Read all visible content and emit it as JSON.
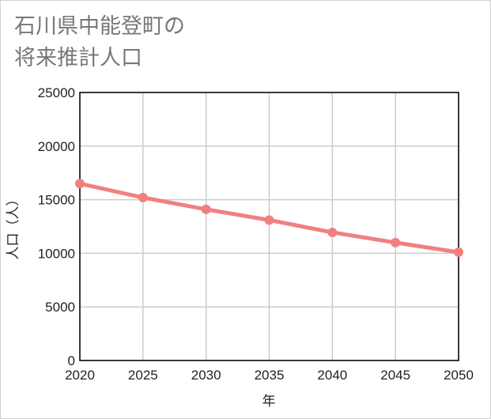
{
  "chart_data": {
    "type": "line",
    "title_lines": [
      "石川県中能登町の",
      "将来推計人口"
    ],
    "xlabel": "年",
    "ylabel": "人口（人）",
    "x": [
      2020,
      2025,
      2030,
      2035,
      2040,
      2045,
      2050
    ],
    "x_tick_labels": [
      "2020",
      "2025",
      "2030",
      "2035",
      "2040",
      "2045",
      "2050"
    ],
    "xlim": [
      2020,
      2050
    ],
    "ylim": [
      0,
      25000
    ],
    "y_ticks": [
      0,
      5000,
      10000,
      15000,
      20000,
      25000
    ],
    "y_tick_labels": [
      "0",
      "5000",
      "10000",
      "15000",
      "20000",
      "25000"
    ],
    "grid": true,
    "legend": "none",
    "series": [
      {
        "name": "人口",
        "values": [
          16500,
          15200,
          14100,
          13100,
          11950,
          11000,
          10100
        ],
        "color": "#f08080"
      }
    ]
  }
}
